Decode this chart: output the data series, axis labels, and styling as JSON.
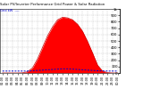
{
  "title": "Solar PV/Inverter Performance Grid Power & Solar Radiation",
  "background_color": "#ffffff",
  "plot_bg_color": "#ffffff",
  "grid_color": "#aaaaaa",
  "red_fill_color": "#ff0000",
  "red_edge_color": "#cc0000",
  "blue_dash_color": "#0000cc",
  "x_ticks": [
    "01:00",
    "02:00",
    "03:00",
    "04:00",
    "05:00",
    "06:00",
    "07:00",
    "08:00",
    "09:00",
    "10:00",
    "11:00",
    "12:00",
    "13:00",
    "14:00",
    "15:00",
    "16:00",
    "17:00",
    "18:00",
    "19:00",
    "20:00",
    "21:00",
    "22:00",
    "23:00",
    "00:00"
  ],
  "y_right_ticks": [
    0,
    100,
    200,
    300,
    400,
    500,
    600,
    700,
    800,
    900,
    1000
  ],
  "y_right_labels": [
    "0",
    "100",
    "200",
    "300",
    "400",
    "500",
    "600",
    "700",
    "800",
    "900",
    "1k"
  ],
  "solar_data": [
    0,
    0,
    0,
    0,
    2,
    20,
    80,
    220,
    400,
    580,
    720,
    830,
    870,
    860,
    830,
    760,
    650,
    490,
    310,
    120,
    30,
    5,
    0,
    0
  ],
  "grid_power_data": [
    30,
    30,
    30,
    30,
    30,
    30,
    35,
    40,
    45,
    50,
    55,
    60,
    65,
    65,
    60,
    55,
    50,
    45,
    40,
    35,
    32,
    30,
    30,
    30
  ],
  "solar_max": 1000,
  "n_points": 24
}
